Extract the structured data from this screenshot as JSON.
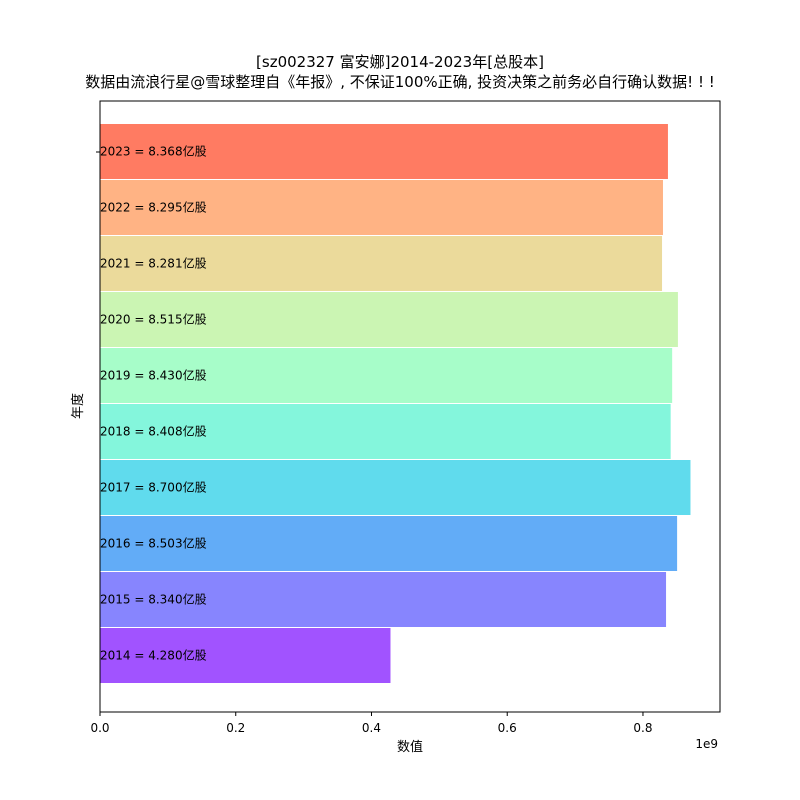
{
  "chart_data": {
    "type": "bar",
    "orientation": "horizontal",
    "title": "[sz002327 富安娜]2014-2023年[总股本]",
    "subtitle": "数据由流浪行星@雪球整理自《年报》, 不保证100%正确, 投资决策之前务必自行确认数据! ! !",
    "xlabel": "数值",
    "ylabel": "年度",
    "x_multiplier": "1e9",
    "xlim": [
      0,
      913500000
    ],
    "xticks": [
      "0.0",
      "0.2",
      "0.4",
      "0.6",
      "0.8"
    ],
    "xtick_values": [
      0,
      200000000,
      400000000,
      600000000,
      800000000
    ],
    "grid": false,
    "categories": [
      "2023",
      "2022",
      "2021",
      "2020",
      "2019",
      "2018",
      "2017",
      "2016",
      "2015",
      "2014"
    ],
    "values": [
      836800000,
      829500000,
      828100000,
      851500000,
      843000000,
      840800000,
      870000000,
      850300000,
      834000000,
      428000000
    ],
    "labels": [
      "2023 = 8.368亿股",
      "2022 = 8.295亿股",
      "2021 = 8.281亿股",
      "2020 = 8.515亿股",
      "2019 = 8.430亿股",
      "2018 = 8.408亿股",
      "2017 = 8.700亿股",
      "2016 = 8.503亿股",
      "2015 = 8.340亿股",
      "2014 = 4.280亿股"
    ],
    "colors": [
      "#ff6446",
      "#ffa66e",
      "#e8d38a",
      "#c2f3a6",
      "#98fdc0",
      "#6ef4d6",
      "#44d5ea",
      "#469ef6",
      "#7270fe",
      "#9035ff"
    ]
  }
}
